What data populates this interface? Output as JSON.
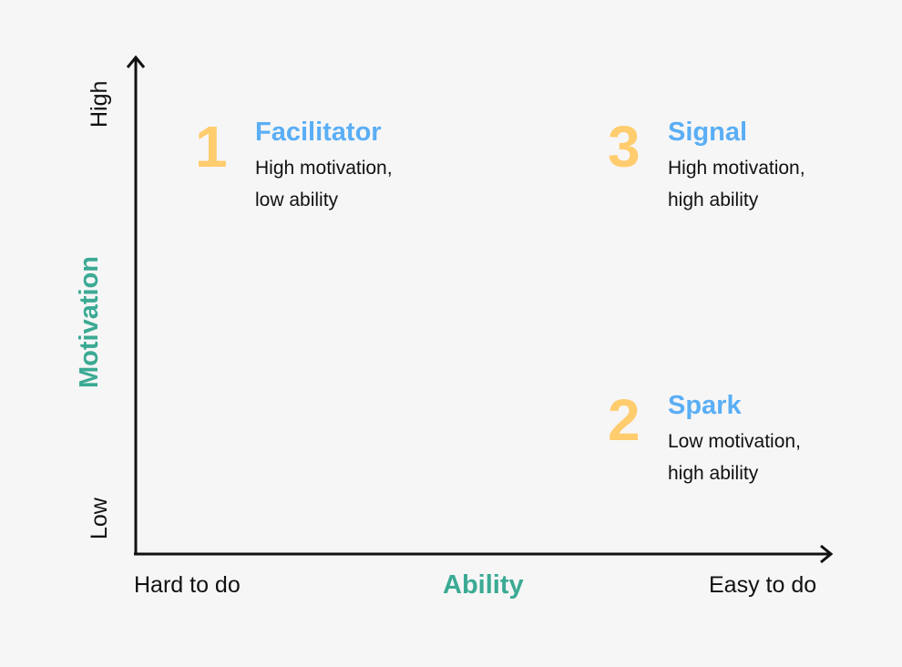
{
  "colors": {
    "number": "#FFCC6E",
    "title": "#5AAEF5",
    "axis_title": "#3BAA94",
    "background": "#F6F6F6"
  },
  "y_axis": {
    "title": "Motivation",
    "low": "Low",
    "high": "High"
  },
  "x_axis": {
    "title": "Ability",
    "low": "Hard to do",
    "high": "Easy to do"
  },
  "quadrants": [
    {
      "number": "1",
      "title": "Facilitator",
      "line1": "High motivation,",
      "line2": "low ability"
    },
    {
      "number": "2",
      "title": "Spark",
      "line1": "Low motivation,",
      "line2": "high ability"
    },
    {
      "number": "3",
      "title": "Signal",
      "line1": "High motivation,",
      "line2": "high ability"
    }
  ]
}
